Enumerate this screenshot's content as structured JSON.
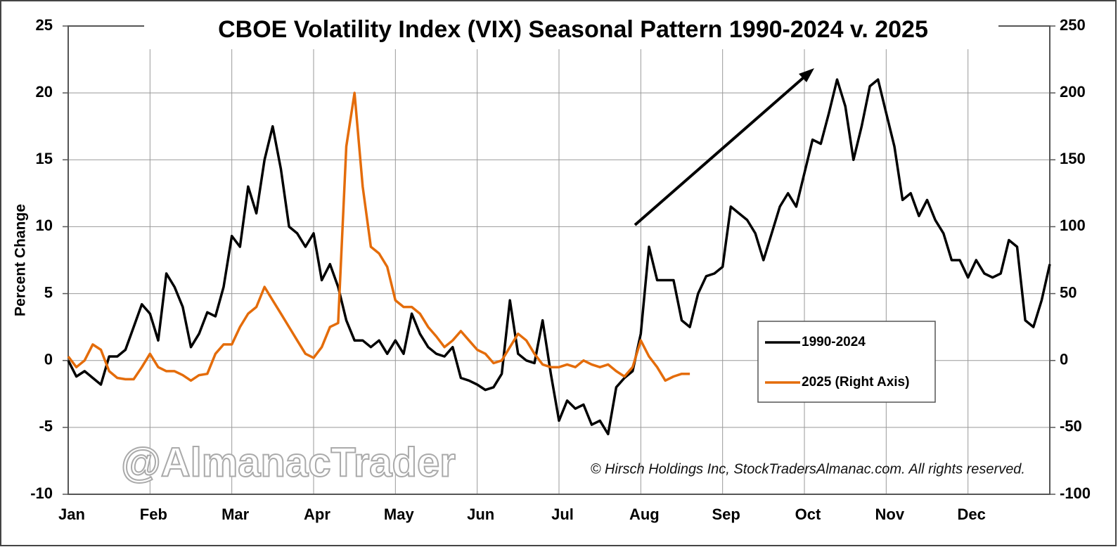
{
  "chart_data": {
    "type": "line",
    "title": "CBOE Volatility Index (VIX) Seasonal Pattern 1990-2024 v. 2025",
    "y_label": "Percent Change",
    "watermark": "@AlmanacTrader",
    "copyright": "© Hirsch Holdings Inc, StockTradersAlmanac.com. All rights reserved.",
    "grid": true,
    "y2_negative_tick_color": "#e00000",
    "xlim": [
      0,
      12
    ],
    "xticks": [
      {
        "value": 0,
        "label": "Jan"
      },
      {
        "value": 1,
        "label": "Feb"
      },
      {
        "value": 2,
        "label": "Mar"
      },
      {
        "value": 3,
        "label": "Apr"
      },
      {
        "value": 4,
        "label": "May"
      },
      {
        "value": 5,
        "label": "Jun"
      },
      {
        "value": 6,
        "label": "Jul"
      },
      {
        "value": 7,
        "label": "Aug"
      },
      {
        "value": 8,
        "label": "Sep"
      },
      {
        "value": 9,
        "label": "Oct"
      },
      {
        "value": 10,
        "label": "Nov"
      },
      {
        "value": 11,
        "label": "Dec"
      }
    ],
    "ylim": [
      -10,
      25
    ],
    "yticks": [
      -10,
      -5,
      0,
      5,
      10,
      15,
      20,
      25
    ],
    "y2lim": [
      -100,
      250
    ],
    "y2ticks": [
      -100,
      -50,
      0,
      50,
      100,
      150,
      200,
      250
    ],
    "x": [
      0,
      0.1,
      0.2,
      0.3,
      0.4,
      0.5,
      0.6,
      0.7,
      0.8,
      0.9,
      1,
      1.1,
      1.2,
      1.3,
      1.4,
      1.5,
      1.6,
      1.7,
      1.8,
      1.9,
      2,
      2.1,
      2.2,
      2.3,
      2.4,
      2.5,
      2.6,
      2.7,
      2.8,
      2.9,
      3,
      3.1,
      3.2,
      3.3,
      3.4,
      3.5,
      3.6,
      3.7,
      3.8,
      3.9,
      4,
      4.1,
      4.2,
      4.3,
      4.4,
      4.5,
      4.6,
      4.7,
      4.8,
      4.9,
      5,
      5.1,
      5.2,
      5.3,
      5.4,
      5.5,
      5.6,
      5.7,
      5.8,
      5.9,
      6,
      6.1,
      6.2,
      6.3,
      6.4,
      6.5,
      6.6,
      6.7,
      6.8,
      6.9,
      7,
      7.1,
      7.2,
      7.3,
      7.4,
      7.5,
      7.6,
      7.7,
      7.8,
      7.9,
      8,
      8.1,
      8.2,
      8.3,
      8.4,
      8.5,
      8.6,
      8.7,
      8.8,
      8.9,
      9,
      9.1,
      9.2,
      9.3,
      9.4,
      9.5,
      9.6,
      9.7,
      9.8,
      9.9,
      10,
      10.1,
      10.2,
      10.3,
      10.4,
      10.5,
      10.6,
      10.7,
      10.8,
      10.9,
      11,
      11.1,
      11.2,
      11.3,
      11.4,
      11.5,
      11.6,
      11.7,
      11.8,
      11.9,
      12
    ],
    "series": [
      {
        "name": "1990-2024",
        "color": "#000000",
        "values": [
          0,
          -1.2,
          -0.8,
          -1.3,
          -1.8,
          0.3,
          0.3,
          0.8,
          2.5,
          4.2,
          3.5,
          1.5,
          6.5,
          5.5,
          4,
          1,
          2,
          3.6,
          3.3,
          5.5,
          9.3,
          8.5,
          13,
          11,
          15,
          17.5,
          14.3,
          10,
          9.5,
          8.5,
          9.5,
          6,
          7.2,
          5.5,
          3,
          1.5,
          1.5,
          1,
          1.5,
          0.5,
          1.5,
          0.5,
          3.5,
          2,
          1,
          0.5,
          0.3,
          1,
          -1.3,
          -1.5,
          -1.8,
          -2.2,
          -2,
          -1,
          4.5,
          0.5,
          0,
          -0.2,
          3,
          -1,
          -4.5,
          -3,
          -3.6,
          -3.3,
          -4.8,
          -4.5,
          -5.5,
          -2,
          -1.3,
          -0.8,
          2,
          8.5,
          6,
          6,
          6,
          3,
          2.5,
          5,
          6.3,
          6.5,
          7,
          11.5,
          11,
          10.5,
          9.5,
          7.5,
          9.5,
          11.5,
          12.5,
          11.5,
          14,
          16.5,
          16.2,
          18.5,
          21,
          19,
          15,
          17.5,
          20.5,
          21,
          18.5,
          16,
          12,
          12.5,
          10.8,
          12,
          10.5,
          9.5,
          7.5,
          7.5,
          6.2,
          7.5,
          6.5,
          6.2,
          6.5,
          9,
          8.5,
          3,
          2.5,
          4.5,
          7.2
        ]
      },
      {
        "name": "2025 (Right Axis)",
        "color": "#e46c0a",
        "axis": "y2",
        "values": [
          3,
          -5,
          0,
          12,
          8,
          -8,
          -13,
          -14,
          -14,
          -5,
          5,
          -5,
          -8,
          -8,
          -11,
          -15,
          -11,
          -10,
          5,
          12,
          12,
          25,
          35,
          40,
          55,
          45,
          35,
          25,
          15,
          5,
          2,
          10,
          25,
          28,
          160,
          200,
          130,
          85,
          80,
          70,
          45,
          40,
          40,
          35,
          25,
          18,
          10,
          15,
          22,
          15,
          8,
          5,
          -2,
          0,
          10,
          20,
          15,
          5,
          -3,
          -5,
          -5,
          -3,
          -5,
          0,
          -3,
          -5,
          -3,
          -8,
          -12,
          -5,
          15,
          3,
          -5,
          -15,
          -12,
          -10,
          -10,
          null,
          null,
          null,
          null,
          null,
          null,
          null,
          null,
          null,
          null,
          null,
          null,
          null,
          null,
          null,
          null,
          null,
          null,
          null,
          null,
          null,
          null,
          null,
          null,
          null,
          null,
          null,
          null,
          null,
          null,
          null,
          null,
          null,
          null,
          null,
          null,
          null,
          null,
          null,
          null,
          null,
          null,
          null,
          null
        ]
      }
    ]
  }
}
